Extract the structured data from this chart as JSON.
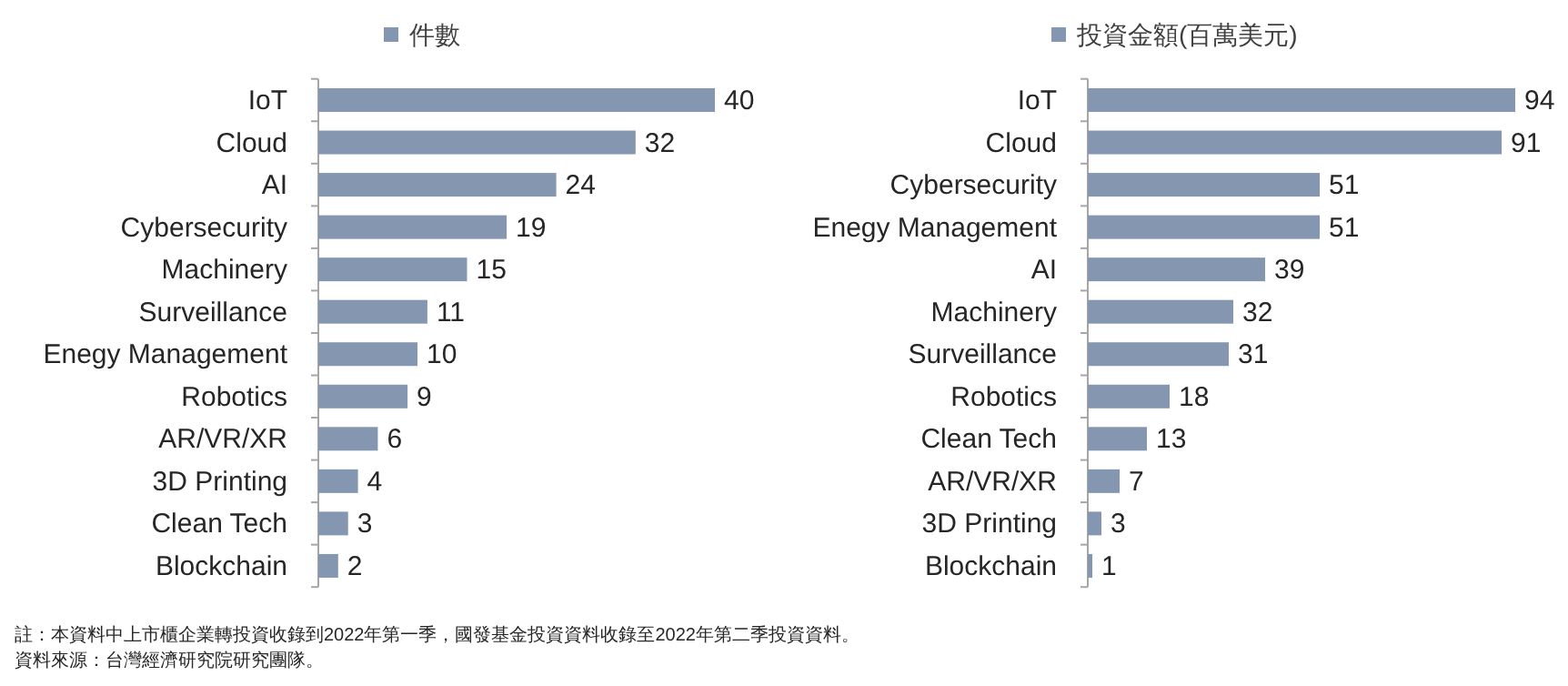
{
  "chart_data": [
    {
      "type": "bar",
      "orientation": "horizontal",
      "legend": "top",
      "data_labels": true,
      "categories": [
        "IoT",
        "Cloud",
        "AI",
        "Cybersecurity",
        "Machinery",
        "Surveillance",
        "Enegy Management",
        "Robotics",
        "AR/VR/XR",
        "3D Printing",
        "Clean Tech",
        "Blockchain"
      ],
      "series": [
        {
          "name": "件數",
          "color": "#8496b0",
          "values": [
            40,
            32,
            24,
            19,
            15,
            11,
            10,
            9,
            6,
            4,
            3,
            2
          ]
        }
      ],
      "annotations": [
        "註：本資料中上市櫃企業轉投資收錄到2022年第一季，國發基金投資資料收錄至2022年第二季投資資料。",
        "資料來源：台灣經濟研究院研究團隊。"
      ]
    },
    {
      "type": "bar",
      "orientation": "horizontal",
      "legend": "top",
      "data_labels": true,
      "categories": [
        "IoT",
        "Cloud",
        "Cybersecurity",
        "Enegy Management",
        "AI",
        "Machinery",
        "Surveillance",
        "Robotics",
        "Clean Tech",
        "AR/VR/XR",
        "3D Printing",
        "Blockchain"
      ],
      "series": [
        {
          "name": "投資金額(百萬美元)",
          "color": "#8496b0",
          "values": [
            94,
            91,
            51,
            51,
            39,
            32,
            31,
            18,
            13,
            7,
            3,
            1
          ]
        }
      ]
    }
  ]
}
